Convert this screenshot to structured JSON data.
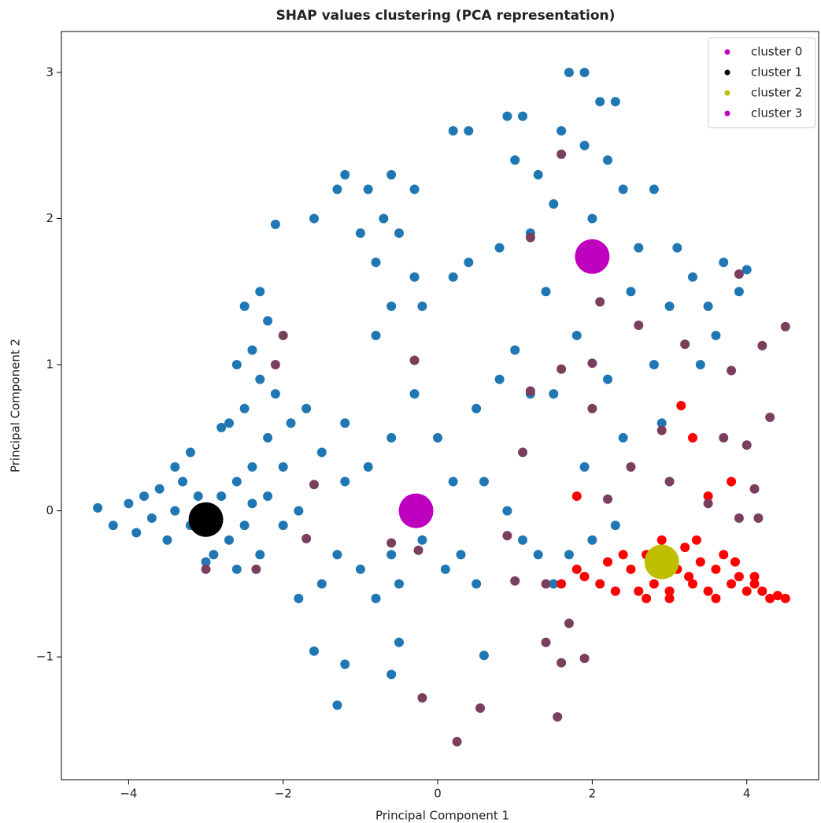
{
  "chart_data": {
    "type": "scatter",
    "title": "SHAP values clustering (PCA representation)",
    "x_label": "Principal Component 1",
    "y_label": "Principal Component 2",
    "xlim": [
      -4.87,
      4.93
    ],
    "ylim": [
      -1.84,
      3.28
    ],
    "xticks": [
      {
        "value": -4,
        "label": "−4"
      },
      {
        "value": -2,
        "label": "−2"
      },
      0,
      2,
      4
    ],
    "yticks": [
      {
        "value": -1,
        "label": "−1"
      },
      0,
      1,
      2,
      3
    ],
    "legend": "upper right",
    "series": [
      {
        "color": "#1f77b4",
        "size": 6,
        "x": [
          -4.4,
          -4.2,
          -4.0,
          -3.9,
          -3.8,
          -3.7,
          -3.6,
          -3.5,
          -3.4,
          -3.3,
          -3.2,
          -3.1,
          -2.9,
          -2.8,
          -2.7,
          -2.6,
          -2.5,
          -2.4,
          -2.3,
          -2.2,
          -2.0,
          -1.8,
          -3.0,
          -2.6,
          -3.4,
          -3.2,
          -2.5,
          -2.3,
          -2.2,
          -2.4,
          -2.6,
          -2.3,
          -2.1,
          -2.5,
          -2.7,
          -2.2,
          -1.9,
          -1.7,
          -2.0,
          -2.4,
          -1.6,
          -1.3,
          -1.2,
          -0.9,
          -0.6,
          -0.3,
          -0.7,
          -1.0,
          -0.5,
          -0.8,
          -0.3,
          -0.2,
          -0.6,
          -0.8,
          0.2,
          0.4,
          -1.5,
          -1.3,
          -1.0,
          -0.8,
          -0.6,
          -0.5,
          -0.2,
          0.1,
          0.3,
          0.5,
          -1.2,
          -0.9,
          -0.6,
          -0.3,
          0.0,
          0.2,
          0.5,
          0.8,
          1.0,
          1.2,
          0.6,
          0.9,
          1.1,
          1.3,
          1.5,
          1.7,
          2.0,
          2.3,
          -1.5,
          -1.2,
          0.2,
          0.4,
          0.9,
          1.1,
          1.7,
          1.9,
          2.1,
          2.3,
          1.6,
          1.9,
          2.2,
          1.3,
          1.0,
          2.4,
          2.8,
          1.5,
          2.0,
          1.2,
          0.8,
          2.6,
          3.1,
          3.3,
          3.7,
          4.0,
          2.5,
          3.0,
          3.5,
          3.6,
          3.4,
          2.8,
          2.2,
          1.8,
          1.5,
          1.4,
          3.9,
          2.9,
          2.4,
          1.9,
          -1.2,
          -0.6,
          -0.5,
          0.6,
          -1.3,
          -1.6,
          -1.8,
          -2.8,
          -2.1
        ],
        "y": [
          0.02,
          -0.1,
          0.05,
          -0.15,
          0.1,
          -0.05,
          0.15,
          -0.2,
          0.0,
          0.2,
          -0.1,
          0.1,
          -0.3,
          0.1,
          -0.2,
          0.2,
          -0.1,
          0.05,
          -0.3,
          0.1,
          -0.1,
          0.0,
          -0.35,
          -0.4,
          0.3,
          0.4,
          1.4,
          1.5,
          1.3,
          1.1,
          1.0,
          0.9,
          0.8,
          0.7,
          0.6,
          0.5,
          0.6,
          0.7,
          0.3,
          0.3,
          2.0,
          2.2,
          2.3,
          2.2,
          2.3,
          2.2,
          2.0,
          1.9,
          1.9,
          1.7,
          1.6,
          1.4,
          1.4,
          1.2,
          1.6,
          1.7,
          -0.5,
          -0.3,
          -0.4,
          -0.6,
          -0.3,
          -0.5,
          -0.2,
          -0.4,
          -0.3,
          -0.5,
          0.2,
          0.3,
          0.5,
          0.8,
          0.5,
          0.2,
          0.7,
          0.9,
          1.1,
          0.8,
          0.2,
          0.0,
          -0.2,
          -0.3,
          -0.5,
          -0.3,
          -0.2,
          -0.1,
          0.4,
          0.6,
          2.6,
          2.6,
          2.7,
          2.7,
          3.0,
          3.0,
          2.8,
          2.8,
          2.6,
          2.5,
          2.4,
          2.3,
          2.4,
          2.2,
          2.2,
          2.1,
          2.0,
          1.9,
          1.8,
          1.8,
          1.8,
          1.6,
          1.7,
          1.65,
          1.5,
          1.4,
          1.4,
          1.2,
          1.0,
          1.0,
          0.9,
          1.2,
          0.8,
          1.5,
          1.5,
          0.6,
          0.5,
          0.3,
          -1.05,
          -1.12,
          -0.9,
          -0.99,
          -1.33,
          -0.96,
          -0.6,
          0.57,
          1.96
        ]
      },
      {
        "color": "#ff0000",
        "size": 6,
        "x": [
          1.6,
          1.9,
          2.1,
          2.3,
          2.5,
          2.6,
          2.7,
          2.8,
          3.0,
          3.1,
          3.2,
          3.3,
          3.4,
          3.5,
          3.6,
          3.7,
          3.8,
          3.9,
          4.0,
          4.1,
          4.2,
          4.3,
          4.4,
          4.5,
          2.4,
          2.9,
          3.35,
          3.0,
          2.2,
          1.8,
          3.6,
          3.15,
          3.3,
          3.8,
          1.8,
          3.5,
          4.1,
          2.7,
          3.25,
          3.85
        ],
        "y": [
          -0.5,
          -0.45,
          -0.5,
          -0.55,
          -0.4,
          -0.55,
          -0.3,
          -0.5,
          -0.55,
          -0.4,
          -0.25,
          -0.5,
          -0.35,
          -0.55,
          -0.4,
          -0.3,
          -0.5,
          -0.45,
          -0.55,
          -0.5,
          -0.55,
          -0.6,
          -0.58,
          -0.6,
          -0.3,
          -0.2,
          -0.2,
          -0.6,
          -0.35,
          -0.4,
          -0.6,
          0.72,
          0.5,
          0.2,
          0.1,
          0.1,
          -0.45,
          -0.6,
          -0.45,
          -0.35
        ]
      },
      {
        "color": "#7b3f5e",
        "size": 6,
        "x": [
          -2.0,
          -2.1,
          -0.3,
          -0.6,
          -0.25,
          -0.2,
          0.25,
          0.55,
          1.4,
          1.6,
          1.55,
          1.9,
          1.7,
          1.0,
          1.2,
          1.6,
          2.0,
          2.1,
          2.6,
          3.2,
          3.9,
          4.2,
          4.5,
          4.3,
          3.8,
          2.9,
          2.5,
          3.0,
          3.7,
          4.0,
          4.1,
          3.9,
          3.5,
          4.15,
          2.2,
          1.1,
          0.9,
          1.4,
          -3.0,
          -2.35,
          -1.6,
          -1.7,
          1.6,
          1.2,
          2.0
        ],
        "y": [
          1.2,
          1.0,
          1.03,
          -0.22,
          -0.27,
          -1.28,
          -1.58,
          -1.35,
          -0.9,
          -1.04,
          -1.41,
          -1.01,
          -0.77,
          -0.48,
          0.82,
          0.97,
          1.01,
          1.43,
          1.27,
          1.14,
          1.62,
          1.13,
          1.26,
          0.64,
          0.96,
          0.55,
          0.3,
          0.2,
          0.5,
          0.45,
          0.15,
          -0.05,
          0.05,
          -0.05,
          0.08,
          0.4,
          -0.17,
          -0.5,
          -0.4,
          -0.4,
          0.18,
          -0.19,
          2.44,
          1.87,
          0.7
        ]
      },
      {
        "name": "cluster 0",
        "color": "#bf00bf",
        "size": 22,
        "x": [
          -0.28
        ],
        "y": [
          0.0
        ]
      },
      {
        "name": "cluster 1",
        "color": "#000000",
        "size": 22,
        "x": [
          -3.0
        ],
        "y": [
          -0.06
        ]
      },
      {
        "name": "cluster 2",
        "color": "#bfbf00",
        "size": 22,
        "x": [
          2.9
        ],
        "y": [
          -0.35
        ]
      },
      {
        "name": "cluster 3",
        "color": "#bf00bf",
        "size": 22,
        "x": [
          2.0
        ],
        "y": [
          1.74
        ]
      }
    ]
  }
}
